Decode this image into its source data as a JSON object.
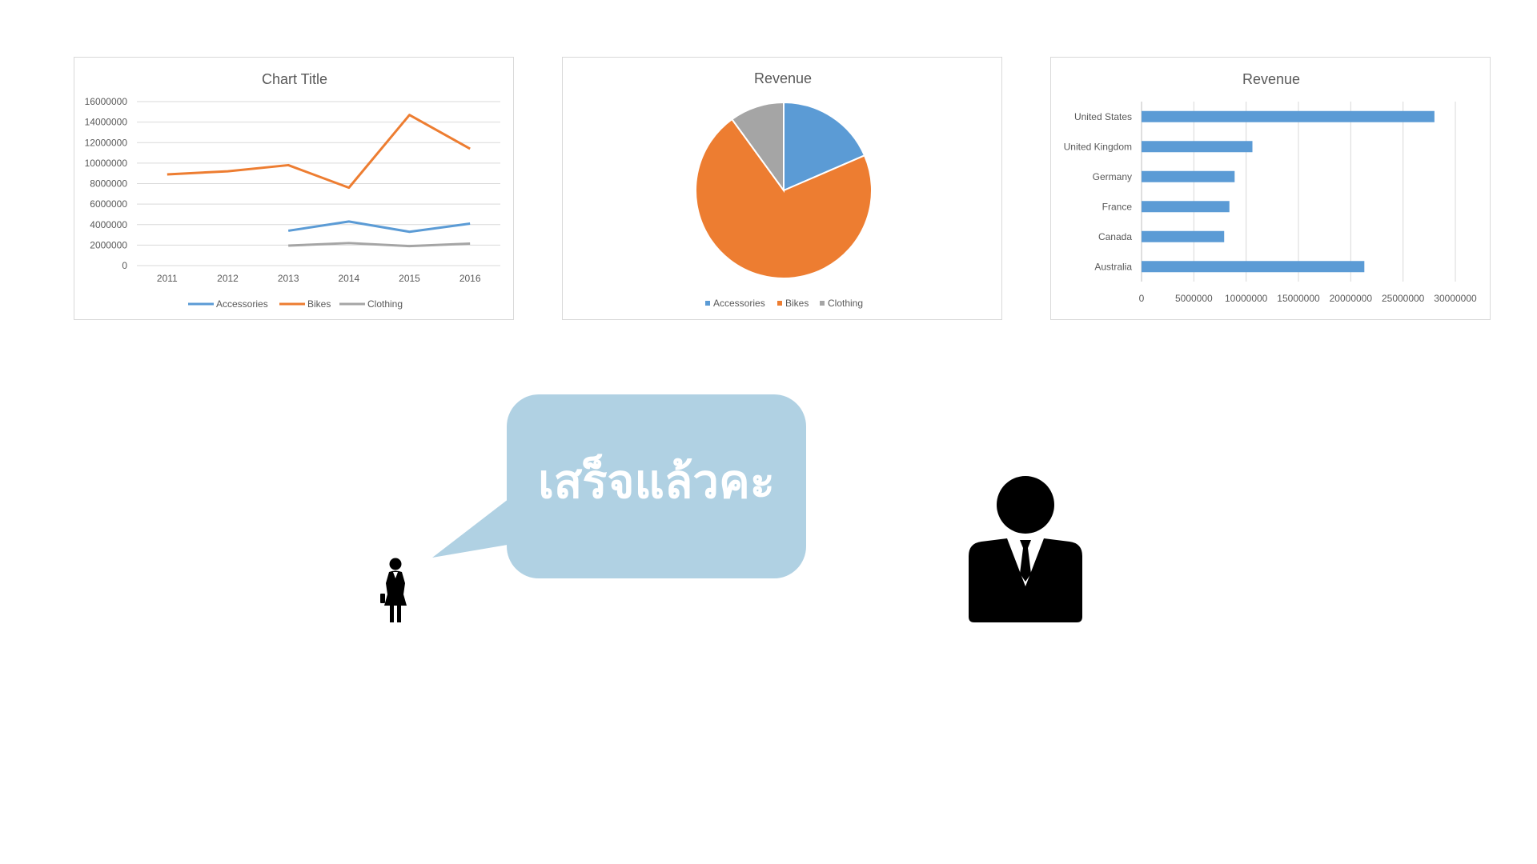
{
  "charts": [
    {
      "type": "line",
      "title": "Chart Title",
      "x": [
        "2011",
        "2012",
        "2013",
        "2014",
        "2015",
        "2016"
      ],
      "ylim": [
        0,
        16000000
      ],
      "yticks": [
        "0",
        "2000000",
        "4000000",
        "6000000",
        "8000000",
        "10000000",
        "12000000",
        "14000000",
        "16000000"
      ],
      "grid": true,
      "legend_position": "bottom",
      "series": [
        {
          "name": "Accessories",
          "color": "#5b9bd5",
          "values": [
            null,
            null,
            3400000,
            4300000,
            3300000,
            4100000
          ]
        },
        {
          "name": "Bikes",
          "color": "#ed7d31",
          "values": [
            8900000,
            9200000,
            9800000,
            7600000,
            14700000,
            11400000
          ]
        },
        {
          "name": "Clothing",
          "color": "#a5a5a5",
          "values": [
            null,
            null,
            1950000,
            2200000,
            1900000,
            2150000
          ]
        }
      ]
    },
    {
      "type": "pie",
      "title": "Revenue",
      "legend_position": "bottom",
      "slices": [
        {
          "label": "Accessories",
          "color": "#5b9bd5",
          "value": 18.5
        },
        {
          "label": "Bikes",
          "color": "#ed7d31",
          "value": 71.5
        },
        {
          "label": "Clothing",
          "color": "#a5a5a5",
          "value": 10.0
        }
      ]
    },
    {
      "type": "bar",
      "orientation": "horizontal",
      "title": "Revenue",
      "color": "#5b9bd5",
      "categories": [
        "United States",
        "United Kingdom",
        "Germany",
        "France",
        "Canada",
        "Australia"
      ],
      "values": [
        28000000,
        10600000,
        8900000,
        8400000,
        7900000,
        21300000
      ],
      "xlim": [
        0,
        30000000
      ],
      "xticks": [
        "0",
        "5000000",
        "10000000",
        "15000000",
        "20000000",
        "25000000",
        "30000000"
      ],
      "grid": true
    }
  ],
  "chart_data": [
    {
      "type": "line",
      "title": "Chart Title",
      "x": [
        "2011",
        "2012",
        "2013",
        "2014",
        "2015",
        "2016"
      ],
      "ylim": [
        0,
        16000000
      ],
      "series": [
        {
          "name": "Accessories",
          "values": [
            null,
            null,
            3400000,
            4300000,
            3300000,
            4100000
          ]
        },
        {
          "name": "Bikes",
          "values": [
            8900000,
            9200000,
            9800000,
            7600000,
            14700000,
            11400000
          ]
        },
        {
          "name": "Clothing",
          "values": [
            null,
            null,
            1950000,
            2200000,
            1900000,
            2150000
          ]
        }
      ]
    },
    {
      "type": "pie",
      "title": "Revenue",
      "labels": [
        "Accessories",
        "Bikes",
        "Clothing"
      ],
      "values": [
        18.5,
        71.5,
        10.0
      ]
    },
    {
      "type": "bar",
      "title": "Revenue",
      "categories": [
        "United States",
        "United Kingdom",
        "Germany",
        "France",
        "Canada",
        "Australia"
      ],
      "values": [
        28000000,
        10600000,
        8900000,
        8400000,
        7900000,
        21300000
      ],
      "xlim": [
        0,
        30000000
      ]
    }
  ],
  "speech": {
    "text": "เสร็จแล้วคะ",
    "bubble_color": "#b0d1e3"
  },
  "icons": {
    "woman": "businesswoman-icon",
    "man": "businessman-icon"
  }
}
